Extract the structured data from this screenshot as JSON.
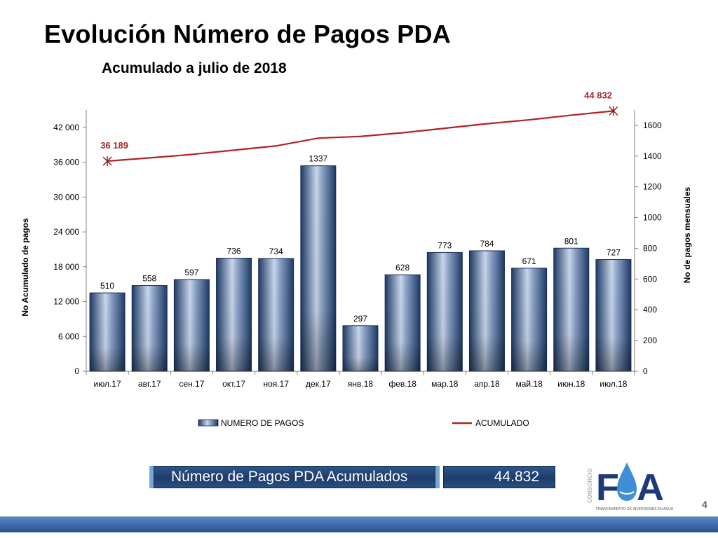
{
  "page": {
    "title": "Evolución Número de Pagos PDA",
    "subtitle": "Acumulado a julio de 2018",
    "page_number": "4"
  },
  "summary": {
    "label": "Número de Pagos PDA Acumulados",
    "value": "44.832"
  },
  "logo": {
    "brand": "FA",
    "side_text": "CONSORCIO",
    "tagline": "FINANCIAMIENTO DE INVERSIONES EN AGUA"
  },
  "colors": {
    "bar_dark": "#1d3a66",
    "bar_light": "#c9d6ea",
    "line": "#b22222",
    "marker": "#8b1a1a",
    "axis": "#7f7f7f"
  },
  "chart_data": {
    "type": "bar",
    "title": "",
    "categories": [
      "июл.17",
      "авг.17",
      "сен.17",
      "окт.17",
      "ноя.17",
      "дек.17",
      "янв.18",
      "фев.18",
      "мар.18",
      "апр.18",
      "май.18",
      "июн.18",
      "июл.18"
    ],
    "series": [
      {
        "name": "NUMERO DE PAGOS",
        "type": "bar",
        "axis": "right",
        "values": [
          510,
          558,
          597,
          736,
          734,
          1337,
          297,
          628,
          773,
          784,
          671,
          801,
          727
        ],
        "labels": [
          "510",
          "558",
          "597",
          "736",
          "734",
          "1337",
          "297",
          "628",
          "773",
          "784",
          "671",
          "801",
          "727"
        ]
      },
      {
        "name": "ACUMULADO",
        "type": "line",
        "axis": "left",
        "values": [
          36189,
          36747,
          37344,
          38080,
          38814,
          40151,
          40448,
          41076,
          41849,
          42633,
          43304,
          44105,
          44832
        ],
        "labels": [
          "36 189",
          "",
          "",
          "",
          "",
          "",
          "",
          "",
          "",
          "",
          "",
          "",
          "44 832"
        ]
      }
    ],
    "ylabel_left": "No Acumulado de pagos",
    "ylabel_right": "No de pagos mensuales",
    "ylim_left": [
      0,
      45000
    ],
    "ylim_right": [
      0,
      1700
    ],
    "yticks_left": [
      0,
      6000,
      12000,
      18000,
      24000,
      30000,
      36000,
      42000
    ],
    "yticks_left_labels": [
      "0",
      "6 000",
      "12 000",
      "18 000",
      "24 000",
      "30 000",
      "36 000",
      "42 000"
    ],
    "yticks_right": [
      0,
      200,
      400,
      600,
      800,
      1000,
      1200,
      1400,
      1600
    ],
    "yticks_right_labels": [
      "0",
      "200",
      "400",
      "600",
      "800",
      "1000",
      "1200",
      "1400",
      "1600"
    ],
    "grid": false,
    "legend": "bottom"
  }
}
